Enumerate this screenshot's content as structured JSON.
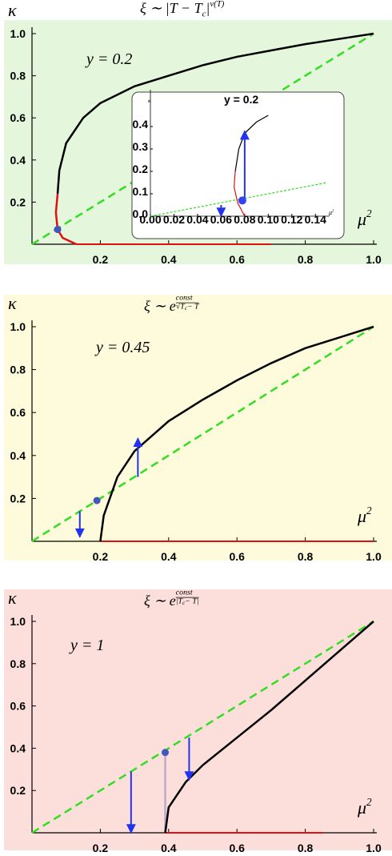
{
  "chart_data": [
    {
      "type": "line",
      "background": "#e4f7dc",
      "title": [
        {
          "text": "ξ ∼ |T − T"
        },
        {
          "text": "c",
          "pos": "sub"
        },
        {
          "text": "|"
        },
        {
          "text": "ν(T)",
          "pos": "sup"
        }
      ],
      "annotation": "y = 0.2",
      "y_label": "κ",
      "x_label": [
        {
          "text": "μ"
        },
        {
          "text": "2",
          "pos": "sup"
        }
      ],
      "xlim": [
        0,
        1
      ],
      "ylim": [
        0,
        1
      ],
      "xticks": [
        0.2,
        0.4,
        0.6,
        0.8,
        {
          "value": 1,
          "label": "1.0"
        }
      ],
      "yticks": [
        0.2,
        0.4,
        0.6,
        0.8,
        {
          "value": 1,
          "label": "1.0"
        }
      ],
      "series": [
        {
          "color": "#33dd22",
          "dash": true,
          "x": [
            0,
            1
          ],
          "values": [
            0,
            1
          ]
        },
        {
          "color": "#e01010",
          "x": [
            0.13,
            0.7
          ],
          "values": [
            0,
            0
          ]
        },
        {
          "color": "#000000",
          "x": [
            0.075,
            0.08,
            0.1,
            0.15,
            0.2,
            0.3,
            0.4,
            0.5,
            0.6,
            0.7,
            0.8,
            0.9,
            1
          ],
          "values": [
            0.24,
            0.35,
            0.48,
            0.6,
            0.67,
            0.75,
            0.8,
            0.85,
            0.89,
            0.92,
            0.95,
            0.975,
            1
          ]
        },
        {
          "color": "#e01010",
          "x": [
            0.075,
            0.07,
            0.075,
            0.09,
            0.13
          ],
          "values": [
            0.24,
            0.15,
            0.07,
            0.03,
            0
          ]
        }
      ],
      "points": [
        {
          "x": 0.075,
          "y": 0.07,
          "color": "#4455bb"
        }
      ],
      "arrows": []
    },
    {
      "type": "line",
      "background": "#ffffff",
      "title": [
        {
          "text": "y = 0.2"
        }
      ],
      "y_label": "κ",
      "x_label": [
        {
          "text": "μ"
        },
        {
          "text": "2",
          "pos": "sup"
        }
      ],
      "xlim": [
        0,
        0.15
      ],
      "ylim": [
        0,
        0.5
      ],
      "xticks": [
        {
          "value": 0,
          "label": "0.00"
        },
        {
          "value": 0.02,
          "label": "0.02"
        },
        {
          "value": 0.04,
          "label": "0.04"
        },
        {
          "value": 0.06,
          "label": "0.06"
        },
        {
          "value": 0.08,
          "label": "0.08"
        },
        {
          "value": 0.1,
          "label": "0.10"
        },
        {
          "value": 0.12,
          "label": "0.12"
        },
        {
          "value": 0.14,
          "label": "0.14"
        }
      ],
      "yticks": [
        {
          "value": 0,
          "label": "0.0"
        },
        0.1,
        0.2,
        0.3,
        0.4
      ],
      "series": [
        {
          "color": "#33dd22",
          "dash": true,
          "x": [
            0,
            0.15
          ],
          "values": [
            0,
            0.15
          ]
        },
        {
          "color": "#000000",
          "x": [
            0.072,
            0.075,
            0.08,
            0.09,
            0.1
          ],
          "values": [
            0.2,
            0.3,
            0.37,
            0.42,
            0.45
          ]
        },
        {
          "color": "#e01010",
          "x": [
            0.072,
            0.071,
            0.074,
            0.08
          ],
          "values": [
            0.2,
            0.13,
            0.06,
            0
          ]
        }
      ],
      "points": [
        {
          "x": 0.078,
          "y": 0.07,
          "color": "#3344ee"
        }
      ],
      "arrows": [
        {
          "x": 0.08,
          "from": 0.08,
          "to": 0.38
        },
        {
          "x": 0.06,
          "from": 0.05,
          "to": 0
        }
      ]
    },
    {
      "type": "line",
      "background": "#fdfbdc",
      "title": [
        {
          "text": "ξ ∼ e"
        },
        {
          "text": "const",
          "pos": "num"
        },
        {
          "text": "√T",
          "pos": "den"
        },
        {
          "text": "c",
          "pos": "densub"
        },
        {
          "text": " − T",
          "pos": "den"
        }
      ],
      "annotation": "y = 0.45",
      "y_label": "κ",
      "x_label": [
        {
          "text": "μ"
        },
        {
          "text": "2",
          "pos": "sup"
        }
      ],
      "xlim": [
        0,
        1
      ],
      "ylim": [
        0,
        1
      ],
      "xticks": [
        0.2,
        0.4,
        0.6,
        0.8,
        {
          "value": 1,
          "label": "1.0"
        }
      ],
      "yticks": [
        0.2,
        0.4,
        0.6,
        0.8,
        {
          "value": 1,
          "label": "1.0"
        }
      ],
      "series": [
        {
          "color": "#33dd22",
          "dash": true,
          "x": [
            0,
            1
          ],
          "values": [
            0,
            1
          ]
        },
        {
          "color": "#e01010",
          "x": [
            0.2,
            1
          ],
          "values": [
            0,
            0
          ]
        },
        {
          "color": "#000000",
          "x": [
            0.2,
            0.21,
            0.25,
            0.3,
            0.4,
            0.5,
            0.6,
            0.7,
            0.8,
            0.9,
            1
          ],
          "values": [
            0,
            0.12,
            0.3,
            0.42,
            0.56,
            0.66,
            0.75,
            0.83,
            0.9,
            0.95,
            1
          ]
        }
      ],
      "points": [
        {
          "x": 0.19,
          "y": 0.19,
          "color": "#4455bb"
        }
      ],
      "arrows": [
        {
          "x": 0.14,
          "from": 0.14,
          "to": 0.02
        },
        {
          "x": 0.31,
          "from": 0.3,
          "to": 0.48
        }
      ]
    },
    {
      "type": "line",
      "background": "#fcdedb",
      "title": [
        {
          "text": "ξ ∼ e"
        },
        {
          "text": "const",
          "pos": "num"
        },
        {
          "text": "|T",
          "pos": "den"
        },
        {
          "text": "c",
          "pos": "densub"
        },
        {
          "text": " − T|",
          "pos": "den"
        }
      ],
      "annotation": "y = 1",
      "y_label": "κ",
      "x_label": [
        {
          "text": "μ"
        },
        {
          "text": "2",
          "pos": "sup"
        }
      ],
      "xlim": [
        0,
        1
      ],
      "ylim": [
        0,
        1
      ],
      "xticks": [
        0.2,
        0.4,
        0.6,
        0.8,
        {
          "value": 1,
          "label": "1.0"
        }
      ],
      "yticks": [
        0.2,
        0.4,
        0.6,
        0.8,
        {
          "value": 1,
          "label": "1.0"
        }
      ],
      "series": [
        {
          "color": "#33dd22",
          "dash": true,
          "x": [
            0,
            1
          ],
          "values": [
            0,
            1
          ]
        },
        {
          "color": "#e01010",
          "x": [
            0.39,
            0.85
          ],
          "values": [
            0,
            0
          ]
        },
        {
          "color": "#bbaacc",
          "x": [
            0.39,
            0.39
          ],
          "values": [
            0,
            0.38
          ]
        },
        {
          "color": "#000000",
          "x": [
            0.39,
            0.4,
            0.45,
            0.5,
            0.6,
            0.7,
            0.8,
            0.9,
            1
          ],
          "values": [
            0,
            0.12,
            0.24,
            0.32,
            0.45,
            0.58,
            0.72,
            0.86,
            1
          ]
        }
      ],
      "points": [
        {
          "x": 0.39,
          "y": 0.38,
          "color": "#4455bb"
        }
      ],
      "arrows": [
        {
          "x": 0.29,
          "from": 0.29,
          "to": 0
        },
        {
          "x": 0.46,
          "from": 0.45,
          "to": 0.25
        }
      ]
    }
  ]
}
